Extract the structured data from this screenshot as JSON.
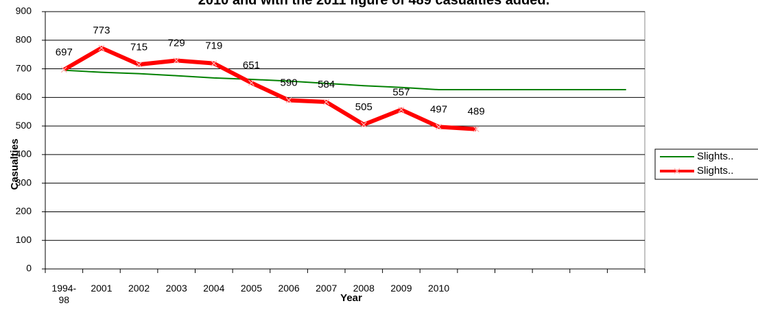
{
  "chart_data": {
    "type": "line",
    "title": "2010 and with the 2011 figure of 489 casualties added.",
    "x_label": "Year",
    "y_label": "Casualties",
    "categories": [
      "1994-98",
      "2001",
      "2002",
      "2003",
      "2004",
      "2005",
      "2006",
      "2007",
      "2008",
      "2009",
      "2010",
      null,
      null,
      null,
      null,
      null
    ],
    "series": [
      {
        "name": "Slights..",
        "color": "#008000",
        "values": [
          695,
          688,
          683,
          676,
          668,
          663,
          657,
          649,
          641,
          635,
          627,
          627,
          627,
          627,
          627,
          627
        ]
      },
      {
        "name": "Slights..",
        "color": "#ff0000",
        "marker": true,
        "values": [
          697,
          773,
          715,
          729,
          719,
          651,
          590,
          584,
          505,
          557,
          497,
          489,
          null,
          null,
          null,
          null
        ]
      }
    ],
    "ylim": [
      0,
      900
    ],
    "yticks": [
      0,
      100,
      200,
      300,
      400,
      500,
      600,
      700,
      800,
      900
    ],
    "grid": true,
    "legend": "right"
  }
}
